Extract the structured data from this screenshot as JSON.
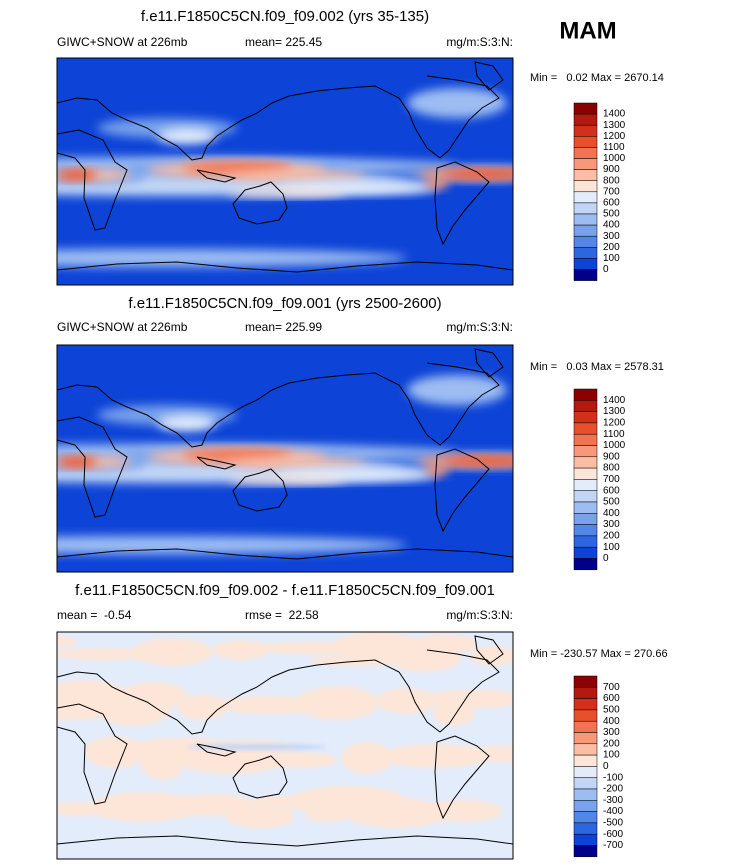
{
  "season": "MAM",
  "panels": [
    {
      "title": "f.e11.F1850C5CN.f09_f09.002 (yrs 35-135)",
      "left_label": "GIWC+SNOW at 226mb",
      "center_label": "mean= 225.45",
      "right_label": "mg/m:S:3:N:",
      "min_max": "Min =   0.02 Max = 2670.14",
      "colorbar": {
        "labels": [
          1400,
          1300,
          1200,
          1100,
          1000,
          900,
          800,
          700,
          600,
          500,
          400,
          300,
          200,
          100,
          0
        ],
        "colors": [
          "#8b0000",
          "#b2190f",
          "#d2301c",
          "#e8502c",
          "#f27350",
          "#f7987a",
          "#fbbea5",
          "#fde6d8",
          "#e2ecfb",
          "#c1d6f7",
          "#9dbdf2",
          "#78a2ec",
          "#5286e7",
          "#2d67e0",
          "#0d43d6",
          "#00008b"
        ]
      }
    },
    {
      "title": "f.e11.F1850C5CN.f09_f09.001 (yrs 2500-2600)",
      "left_label": "GIWC+SNOW at 226mb",
      "center_label": "mean= 225.99",
      "right_label": "mg/m:S:3:N:",
      "min_max": "Min =   0.03 Max = 2578.31",
      "colorbar": {
        "labels": [
          1400,
          1300,
          1200,
          1100,
          1000,
          900,
          800,
          700,
          600,
          500,
          400,
          300,
          200,
          100,
          0
        ],
        "colors": [
          "#8b0000",
          "#b2190f",
          "#d2301c",
          "#e8502c",
          "#f27350",
          "#f7987a",
          "#fbbea5",
          "#fde6d8",
          "#e2ecfb",
          "#c1d6f7",
          "#9dbdf2",
          "#78a2ec",
          "#5286e7",
          "#2d67e0",
          "#0d43d6",
          "#00008b"
        ]
      }
    },
    {
      "title": "f.e11.F1850C5CN.f09_f09.002 - f.e11.F1850C5CN.f09_f09.001",
      "left_label": "mean =  -0.54",
      "center_label": "rmse =  22.58",
      "right_label": "mg/m:S:3:N:",
      "min_max": "Min = -230.57 Max = 270.66",
      "colorbar": {
        "labels": [
          700,
          600,
          500,
          400,
          300,
          200,
          100,
          0,
          -100,
          -200,
          -300,
          -400,
          -500,
          -600,
          -700
        ],
        "colors": [
          "#8b0000",
          "#b2190f",
          "#d2301c",
          "#e8502c",
          "#f27350",
          "#f7987a",
          "#fbbea5",
          "#fde6d8",
          "#e2ecfb",
          "#c1d6f7",
          "#9dbdf2",
          "#78a2ec",
          "#5286e7",
          "#2d67e0",
          "#0d43d6",
          "#00008b"
        ]
      }
    }
  ]
}
